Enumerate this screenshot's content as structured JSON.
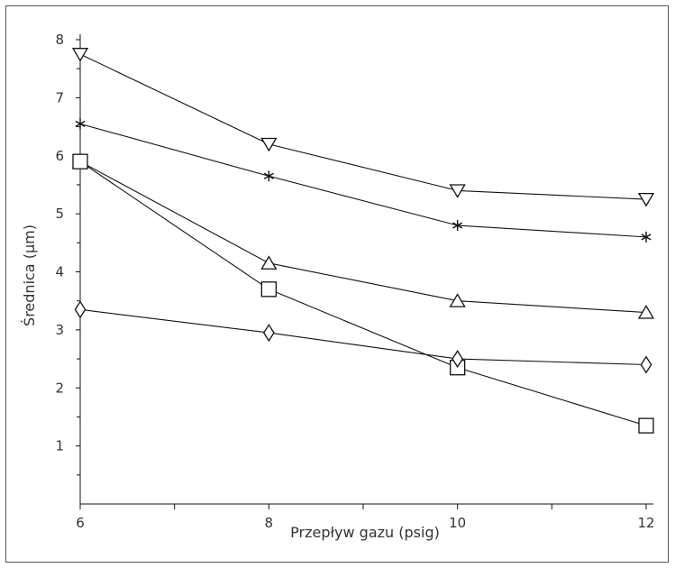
{
  "chart_data": {
    "type": "line",
    "xlabel": "Przepływ gazu (psig)",
    "ylabel": "Średnica (µm)",
    "xlim": [
      6,
      12
    ],
    "ylim": [
      0,
      8
    ],
    "x_ticks": [
      6,
      8,
      10,
      12
    ],
    "y_ticks": [
      1,
      2,
      3,
      4,
      5,
      6,
      7,
      8
    ],
    "x_tick_labels": [
      "6",
      "8",
      "10",
      "12"
    ],
    "y_tick_labels": [
      "1",
      "2",
      "3",
      "4",
      "5",
      "6",
      "7",
      "8"
    ],
    "grid": false,
    "legend": "none",
    "series": [
      {
        "marker": "triangle-down",
        "x": [
          6,
          8,
          10,
          12
        ],
        "values": [
          7.75,
          6.2,
          5.4,
          5.25
        ]
      },
      {
        "marker": "asterisk",
        "x": [
          6,
          8,
          10,
          12
        ],
        "values": [
          6.55,
          5.65,
          4.8,
          4.6
        ]
      },
      {
        "marker": "triangle-up",
        "x": [
          6,
          8,
          10,
          12
        ],
        "values": [
          5.9,
          4.15,
          3.5,
          3.3
        ]
      },
      {
        "marker": "square",
        "x": [
          6,
          8,
          10,
          12
        ],
        "values": [
          5.9,
          3.7,
          2.35,
          1.35
        ]
      },
      {
        "marker": "diamond",
        "x": [
          6,
          8,
          10,
          12
        ],
        "values": [
          3.35,
          2.95,
          2.5,
          2.4
        ]
      }
    ]
  }
}
